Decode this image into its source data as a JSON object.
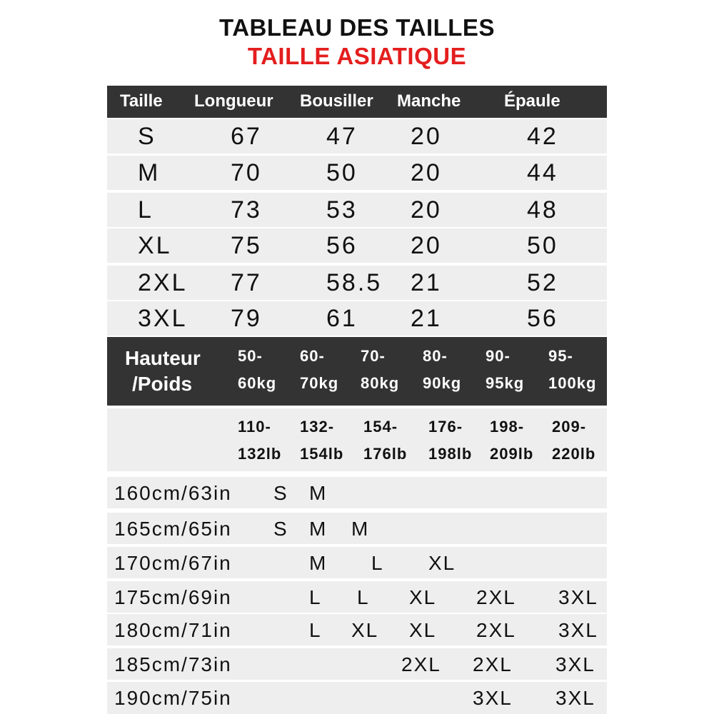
{
  "title": "TABLEAU DES TAILLES",
  "subtitle": "TAILLE ASIATIQUE",
  "colors": {
    "subtitle": "#e41e1e",
    "header_bg": "#333333",
    "row_bg": "#eeeeee"
  },
  "size_table": {
    "headers": [
      "Taille",
      "Longueur",
      "Bousiller",
      "Manche",
      "Épaule"
    ],
    "rows": [
      [
        "S",
        "67",
        "47",
        "20",
        "42"
      ],
      [
        "M",
        "70",
        "50",
        "20",
        "44"
      ],
      [
        "L",
        "73",
        "53",
        "20",
        "48"
      ],
      [
        "XL",
        "75",
        "56",
        "20",
        "50"
      ],
      [
        "2XL",
        "77",
        "58.5",
        "21",
        "52"
      ],
      [
        "3XL",
        "79",
        "61",
        "21",
        "56"
      ]
    ]
  },
  "guide": {
    "label_line1": "Hauteur",
    "label_line2": "/Poids",
    "kg": [
      [
        "50-",
        "60kg"
      ],
      [
        "60-",
        "70kg"
      ],
      [
        "70-",
        "80kg"
      ],
      [
        "80-",
        "90kg"
      ],
      [
        "90-",
        "95kg"
      ],
      [
        "95-",
        "100kg"
      ]
    ],
    "lb": [
      [
        "110-",
        "132lb"
      ],
      [
        "132-",
        "154lb"
      ],
      [
        "154-",
        "176lb"
      ],
      [
        "176-",
        "198lb"
      ],
      [
        "198-",
        "209lb"
      ],
      [
        "209-",
        "220lb"
      ]
    ],
    "rows": [
      {
        "height": "160cm/63in",
        "sizes": [
          "S",
          "M"
        ]
      },
      {
        "height": "165cm/65in",
        "sizes": [
          "S",
          "M",
          "M"
        ]
      },
      {
        "height": "170cm/67in",
        "sizes": [
          "M",
          "L",
          "XL"
        ]
      },
      {
        "height": "175cm/69in",
        "sizes": [
          "L",
          "L",
          "XL",
          "2XL",
          "3XL"
        ]
      },
      {
        "height": "180cm/71in",
        "sizes": [
          "L",
          "XL",
          "XL",
          "2XL",
          "3XL"
        ]
      },
      {
        "height": "185cm/73in",
        "sizes": [
          "2XL",
          "2XL",
          "3XL"
        ]
      },
      {
        "height": "190cm/75in",
        "sizes": [
          "3XL",
          "3XL"
        ]
      }
    ]
  }
}
